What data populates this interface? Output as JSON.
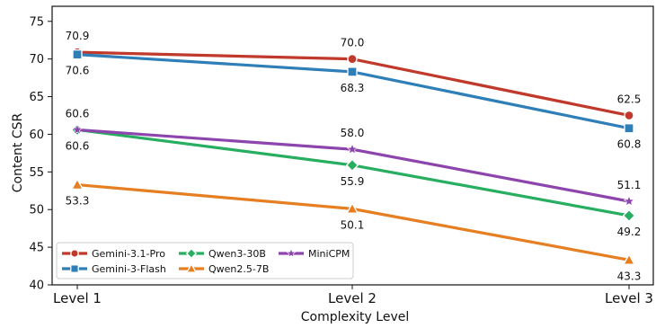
{
  "chart_data": {
    "type": "line",
    "categories": [
      "Level 1",
      "Level 2",
      "Level 3"
    ],
    "xlabel": "Complexity Level",
    "ylabel": "Content CSR",
    "ylim": [
      40,
      77
    ],
    "yticks": [
      40,
      45,
      50,
      55,
      60,
      65,
      70,
      75
    ],
    "grid": false,
    "legend_position": "bottom-left",
    "series": [
      {
        "name": "Gemini-3.1-Pro",
        "values": [
          70.9,
          70.0,
          62.5
        ],
        "color": "#c0392b",
        "marker": "circle",
        "label_side": [
          "above",
          "above",
          "above"
        ],
        "labels": [
          "70.9",
          "70.0",
          "62.5"
        ]
      },
      {
        "name": "Gemini-3-Flash",
        "values": [
          70.6,
          68.3,
          60.8
        ],
        "color": "#2e7fb8",
        "marker": "square",
        "label_side": [
          "below",
          "below",
          "below"
        ],
        "labels": [
          "70.6",
          "68.3",
          "60.8"
        ]
      },
      {
        "name": "Qwen3-30B",
        "values": [
          60.6,
          55.9,
          49.2
        ],
        "color": "#27ae60",
        "marker": "diamond",
        "label_side": [
          "below",
          "below",
          "below"
        ],
        "labels": [
          "60.6",
          "55.9",
          "49.2"
        ]
      },
      {
        "name": "Qwen2.5-7B",
        "values": [
          53.3,
          50.1,
          43.3
        ],
        "color": "#e67e22",
        "marker": "triangle",
        "label_side": [
          "below",
          "below",
          "below"
        ],
        "labels": [
          "53.3",
          "50.1",
          "43.3"
        ]
      },
      {
        "name": "MiniCPM",
        "values": [
          60.6,
          58.0,
          51.1
        ],
        "color": "#8e44ad",
        "marker": "star",
        "label_side": [
          "above",
          "above",
          "above"
        ],
        "labels": [
          "60.6",
          "58.0",
          "51.1"
        ]
      }
    ]
  }
}
